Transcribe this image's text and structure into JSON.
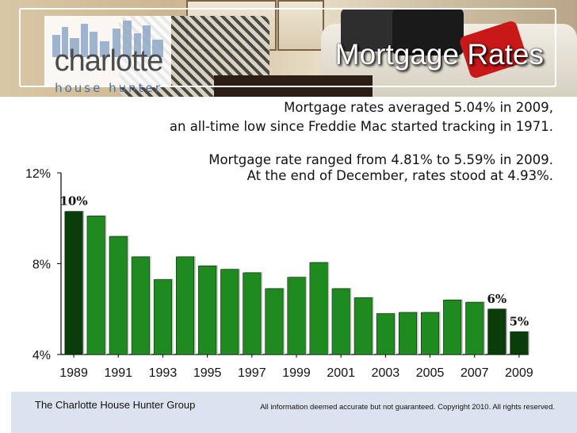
{
  "header": {
    "logo_word": "charlotte",
    "logo_sub": "house hunter",
    "title": "Mortgage Rates"
  },
  "summary": {
    "line1": "Mortgage rates averaged 5.04% in 2009,",
    "line2": "an all-time low since Freddie Mac started tracking in 1971.",
    "line3": "Mortgage rate ranged from 4.81% to 5.59% in 2009.",
    "line4": "At the end of December, rates stood at 4.93%."
  },
  "chart_data": {
    "type": "bar",
    "categories": [
      "1989",
      "1990",
      "1991",
      "1992",
      "1993",
      "1994",
      "1995",
      "1996",
      "1997",
      "1998",
      "1999",
      "2000",
      "2001",
      "2002",
      "2003",
      "2004",
      "2005",
      "2006",
      "2007",
      "2008",
      "2009"
    ],
    "values": [
      10.3,
      10.1,
      9.2,
      8.3,
      7.3,
      8.3,
      7.9,
      7.75,
      7.6,
      6.9,
      7.4,
      8.05,
      6.9,
      6.5,
      5.8,
      5.85,
      5.85,
      6.4,
      6.3,
      6.0,
      5.0
    ],
    "highlight_color": "#0b3d0b",
    "bar_color": "#1f8a1f",
    "highlight_indices": [
      0,
      19,
      20
    ],
    "data_labels": [
      {
        "index": 0,
        "text": "10%"
      },
      {
        "index": 19,
        "text": "6%"
      },
      {
        "index": 20,
        "text": "5%"
      }
    ],
    "xtick_labels": [
      "1989",
      "1991",
      "1993",
      "1995",
      "1997",
      "1999",
      "2001",
      "2003",
      "2005",
      "2007",
      "2009"
    ],
    "ytick_labels": [
      "12%",
      "8%",
      "4%"
    ],
    "yticks": [
      12,
      8,
      4
    ],
    "ylim": [
      4,
      12
    ],
    "grid": false
  },
  "footer": {
    "left": "The Charlotte House Hunter Group",
    "right": "All information deemed accurate but not guaranteed.  Copyright 2010.  All rights reserved."
  }
}
